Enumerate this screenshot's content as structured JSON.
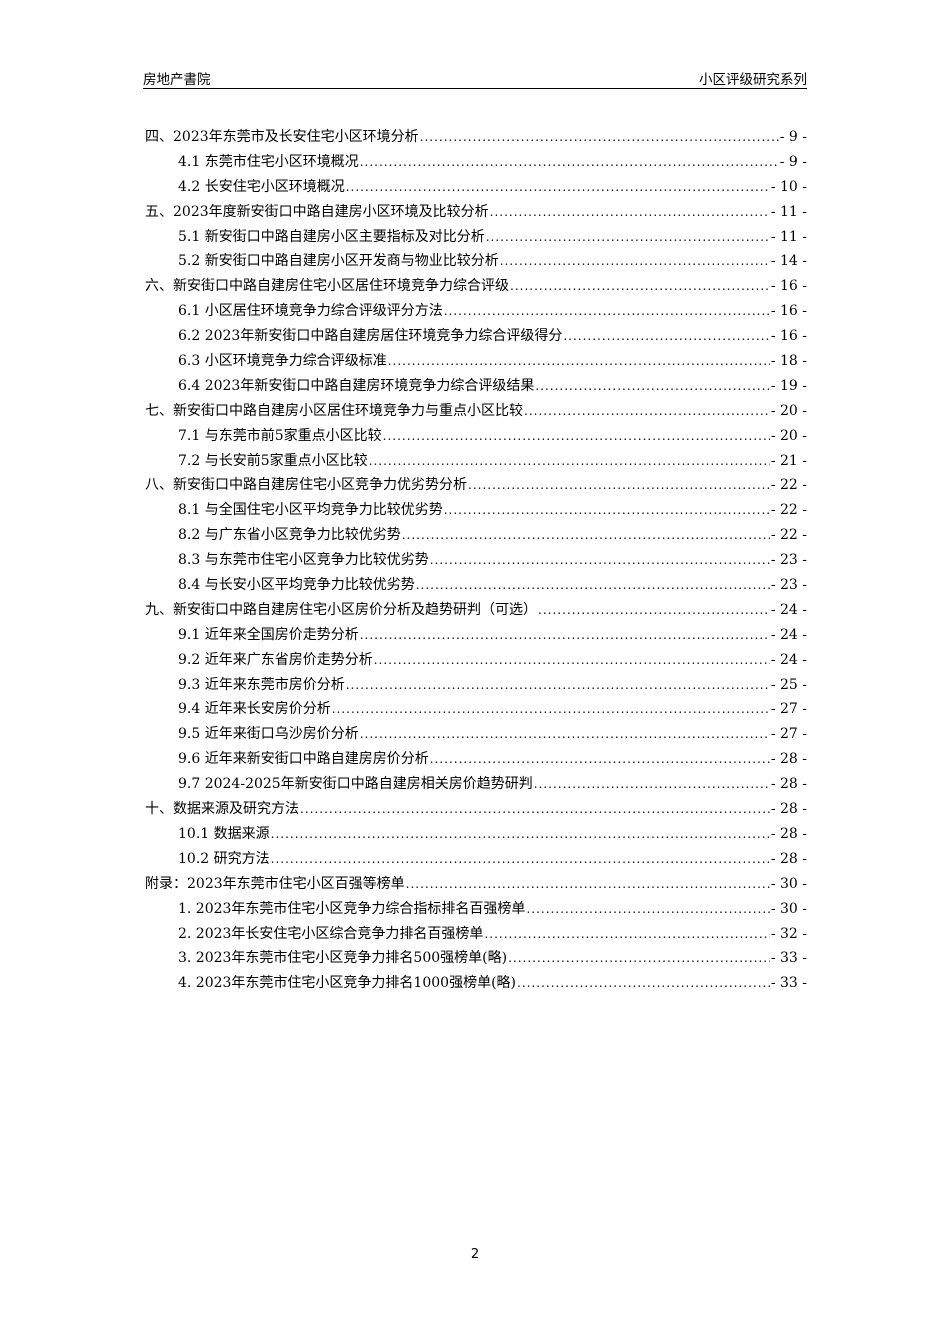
{
  "header": {
    "left": "房地产書院",
    "right": "小区评级研究系列"
  },
  "toc": [
    {
      "level": 1,
      "title": "四、2023年东莞市及长安住宅小区环境分析",
      "page": "- 9 -"
    },
    {
      "level": 2,
      "title": "4.1 东莞市住宅小区环境概况",
      "page": "- 9 -"
    },
    {
      "level": 2,
      "title": "4.2 长安住宅小区环境概况",
      "page": "- 10 -"
    },
    {
      "level": 1,
      "title": "五、2023年度新安街口中路自建房小区环境及比较分析",
      "page": "- 11 -"
    },
    {
      "level": 2,
      "title": "5.1 新安街口中路自建房小区主要指标及对比分析",
      "page": "- 11 -"
    },
    {
      "level": 2,
      "title": "5.2 新安街口中路自建房小区开发商与物业比较分析",
      "page": "- 14 -"
    },
    {
      "level": 1,
      "title": "六、新安街口中路自建房住宅小区居住环境竞争力综合评级",
      "page": "- 16 -"
    },
    {
      "level": 2,
      "title": "6.1 小区居住环境竞争力综合评级评分方法",
      "page": "- 16 -"
    },
    {
      "level": 2,
      "title": "6.2 2023年新安街口中路自建房居住环境竞争力综合评级得分",
      "page": "- 16 -"
    },
    {
      "level": 2,
      "title": "6.3 小区环境竞争力综合评级标准",
      "page": "- 18 -"
    },
    {
      "level": 2,
      "title": "6.4 2023年新安街口中路自建房环境竞争力综合评级结果",
      "page": "- 19 -"
    },
    {
      "level": 1,
      "title": "七、新安街口中路自建房小区居住环境竞争力与重点小区比较",
      "page": "- 20 -"
    },
    {
      "level": 2,
      "title": "7.1 与东莞市前5家重点小区比较",
      "page": "- 20 -"
    },
    {
      "level": 2,
      "title": "7.2 与长安前5家重点小区比较",
      "page": "- 21 -"
    },
    {
      "level": 1,
      "title": "八、新安街口中路自建房住宅小区竞争力优劣势分析",
      "page": "- 22 -"
    },
    {
      "level": 2,
      "title": "8.1 与全国住宅小区平均竞争力比较优劣势",
      "page": "- 22 -"
    },
    {
      "level": 2,
      "title": "8.2 与广东省小区竞争力比较优劣势",
      "page": "- 22 -"
    },
    {
      "level": 2,
      "title": "8.3 与东莞市住宅小区竞争力比较优劣势",
      "page": "- 23 -"
    },
    {
      "level": 2,
      "title": "8.4 与长安小区平均竞争力比较优劣势",
      "page": "- 23 -"
    },
    {
      "level": 1,
      "title": "九、新安街口中路自建房住宅小区房价分析及趋势研判（可选）",
      "page": "- 24 -"
    },
    {
      "level": 2,
      "title": "9.1 近年来全国房价走势分析",
      "page": "- 24 -"
    },
    {
      "level": 2,
      "title": "9.2 近年来广东省房价走势分析",
      "page": "- 24 -"
    },
    {
      "level": 2,
      "title": "9.3 近年来东莞市房价分析",
      "page": "- 25 -"
    },
    {
      "level": 2,
      "title": "9.4 近年来长安房价分析",
      "page": "- 27 -"
    },
    {
      "level": 2,
      "title": "9.5 近年来街口乌沙房价分析",
      "page": "- 27 -"
    },
    {
      "level": 2,
      "title": "9.6 近年来新安街口中路自建房房价分析",
      "page": "- 28 -"
    },
    {
      "level": 2,
      "title": "9.7 2024-2025年新安街口中路自建房相关房价趋势研判",
      "page": "- 28 -"
    },
    {
      "level": 1,
      "title": "十、数据来源及研究方法",
      "page": "- 28 -"
    },
    {
      "level": 2,
      "title": "10.1 数据来源",
      "page": "- 28 -"
    },
    {
      "level": 2,
      "title": "10.2 研究方法",
      "page": "- 28 -"
    },
    {
      "level": 1,
      "title": "附录：2023年东莞市住宅小区百强等榜单",
      "page": "- 30 -"
    },
    {
      "level": 2,
      "title": "1.  2023年东莞市住宅小区竞争力综合指标排名百强榜单",
      "page": "- 30 -"
    },
    {
      "level": 2,
      "title": "2.  2023年长安住宅小区综合竞争力排名百强榜单",
      "page": "- 32 -"
    },
    {
      "level": 2,
      "title": "3.  2023年东莞市住宅小区竞争力排名500强榜单(略)",
      "page": "- 33 -"
    },
    {
      "level": 2,
      "title": "4.  2023年东莞市住宅小区竞争力排名1000强榜单(略)",
      "page": "- 33 -"
    }
  ],
  "footer": {
    "page_number": "2"
  }
}
